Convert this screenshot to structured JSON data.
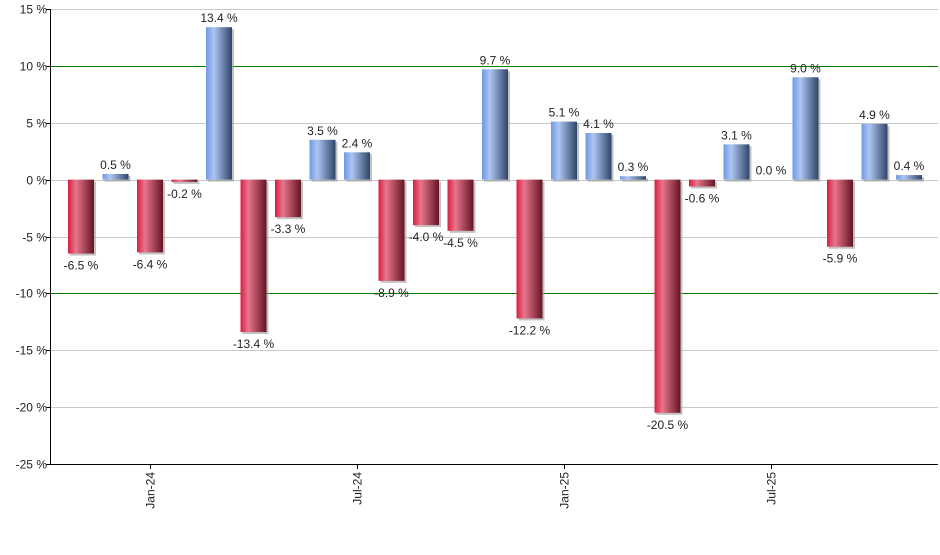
{
  "chart_data": {
    "type": "bar",
    "title": "",
    "xlabel": "",
    "ylabel": "",
    "ylim": [
      -25,
      15
    ],
    "y_ticks": [
      15,
      10,
      5,
      0,
      -5,
      -10,
      -15,
      -20,
      -25
    ],
    "y_tick_suffix": " %",
    "grid": true,
    "reference_lines": [
      10,
      -10
    ],
    "values": [
      -6.5,
      0.5,
      -6.4,
      -0.2,
      13.4,
      -13.4,
      -3.3,
      3.5,
      2.4,
      -8.9,
      -4.0,
      -4.5,
      9.7,
      -12.2,
      5.1,
      4.1,
      0.3,
      -20.5,
      -0.6,
      3.1,
      0.0,
      9.0,
      -5.9,
      4.9,
      0.4
    ],
    "data_labels": [
      "-6.5 %",
      "0.5 %",
      "-6.4 %",
      "-0.2 %",
      "13.4 %",
      "-13.4 %",
      "-3.3 %",
      "3.5 %",
      "2.4 %",
      "-8.9 %",
      "-4.0 %",
      "-4.5 %",
      "9.7 %",
      "-12.2 %",
      "5.1 %",
      "4.1 %",
      "0.3 %",
      "-20.5 %",
      "-0.6 %",
      "3.1 %",
      "0.0 %",
      "9.0 %",
      "-5.9 %",
      "4.9 %",
      "0.4 %"
    ],
    "x_tick_labels": [
      {
        "label": "Jan-24",
        "bar_index": 2
      },
      {
        "label": "Jul-24",
        "bar_index": 8
      },
      {
        "label": "Jan-25",
        "bar_index": 14
      },
      {
        "label": "Jul-25",
        "bar_index": 20
      }
    ],
    "colors": {
      "positive": "#7ba2e8",
      "negative": "#dc2848",
      "reference_line": "#008000",
      "grid": "#c8c8c8"
    }
  }
}
